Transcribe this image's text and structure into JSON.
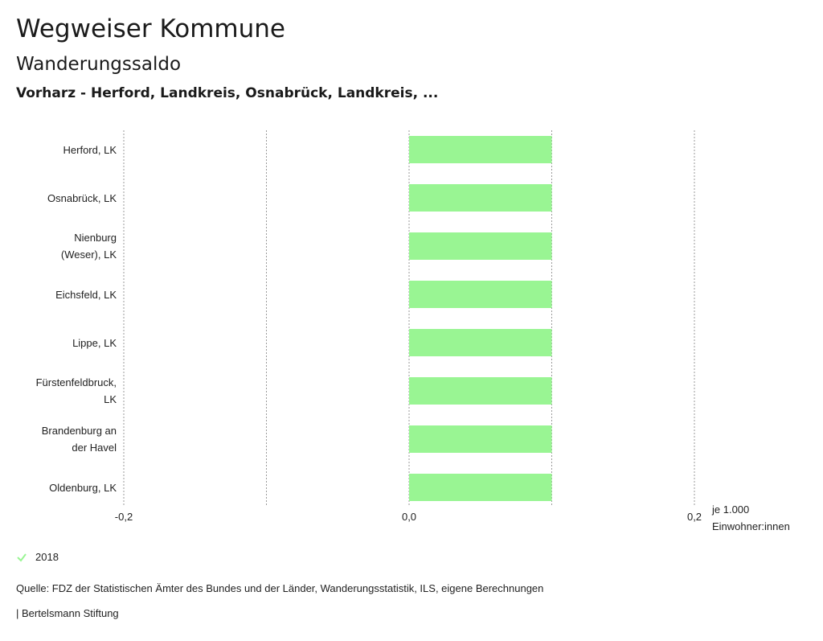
{
  "header": {
    "title": "Wegweiser Kommune",
    "subtitle": "Wanderungssaldo",
    "context": "Vorharz - Herford, Landkreis, Osnabrück, Landkreis, ..."
  },
  "chart_data": {
    "type": "bar",
    "orientation": "horizontal",
    "categories": [
      "Herford, LK",
      "Osnabrück, LK",
      "Nienburg (Weser), LK",
      "Eichsfeld, LK",
      "Lippe, LK",
      "Fürstenfeldbruck, LK",
      "Brandenburg an der Havel",
      "Oldenburg, LK"
    ],
    "category_lines": [
      [
        "Herford, LK"
      ],
      [
        "Osnabrück, LK"
      ],
      [
        "Nienburg",
        "(Weser), LK"
      ],
      [
        "Eichsfeld, LK"
      ],
      [
        "Lippe, LK"
      ],
      [
        "Fürstenfeldbruck,",
        "LK"
      ],
      [
        "Brandenburg an",
        "der Havel"
      ],
      [
        "Oldenburg, LK"
      ]
    ],
    "series": [
      {
        "name": "2018",
        "color": "#99f593",
        "values": [
          0.1,
          0.1,
          0.1,
          0.1,
          0.1,
          0.1,
          0.1,
          0.1
        ]
      }
    ],
    "xlim": [
      -0.2,
      0.2
    ],
    "gridlines": [
      -0.2,
      -0.1,
      0.0,
      0.1,
      0.2
    ],
    "xticks": [
      -0.2,
      0.0,
      0.2
    ],
    "xtick_labels": [
      "-0,2",
      "0,0",
      "0,2"
    ],
    "xlabel": "je 1.000 Einwohner:innen",
    "grid": true,
    "legend_position": "bottom-left"
  },
  "legend": {
    "label": "2018",
    "color": "#99f593"
  },
  "footer": {
    "source": "Quelle: FDZ der Statistischen Ämter des Bundes und der Länder, Wanderungsstatistik, ILS, eigene Berechnungen",
    "brand": "| Bertelsmann Stiftung"
  }
}
